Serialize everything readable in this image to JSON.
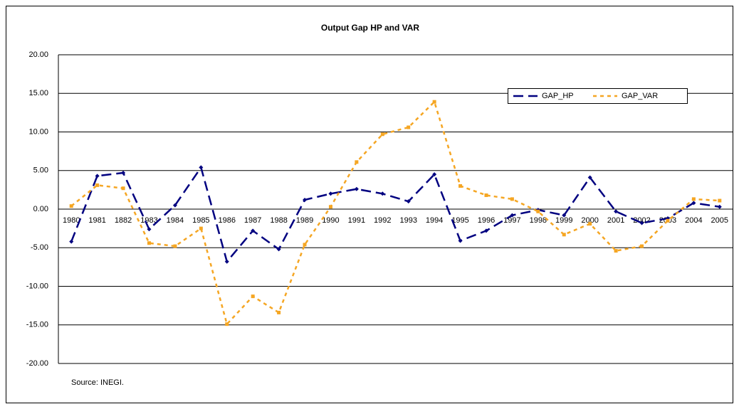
{
  "chart_data": {
    "type": "line",
    "title": "Output Gap HP and VAR",
    "categories": [
      "1980",
      "1981",
      "1882",
      "1983",
      "1984",
      "1985",
      "1986",
      "1987",
      "1988",
      "1989",
      "1990",
      "1991",
      "1992",
      "1993",
      "1994",
      "1995",
      "1996",
      "1997",
      "1998",
      "1999",
      "2000",
      "2001",
      "2002",
      "2003",
      "2004",
      "2005"
    ],
    "series": [
      {
        "name": "GAP_HP",
        "color": "#000080",
        "values": [
          -4.2,
          4.3,
          4.7,
          -2.6,
          0.5,
          5.4,
          -6.8,
          -2.8,
          -5.2,
          1.2,
          2.0,
          2.6,
          2.0,
          1.0,
          4.5,
          -4.1,
          -2.8,
          -0.8,
          -0.1,
          -0.8,
          4.1,
          -0.3,
          -1.8,
          -1.2,
          0.8,
          0.3
        ]
      },
      {
        "name": "GAP_VAR",
        "color": "#f5a623",
        "values": [
          0.4,
          3.1,
          2.7,
          -4.4,
          -4.8,
          -2.5,
          -14.9,
          -11.3,
          -13.4,
          -4.6,
          0.3,
          6.1,
          9.7,
          10.6,
          13.9,
          3.0,
          1.8,
          1.3,
          -0.3,
          -3.3,
          -1.9,
          -5.4,
          -4.8,
          -1.5,
          1.3,
          1.1
        ]
      }
    ],
    "ylim": [
      -20,
      20
    ],
    "yticks": [
      {
        "value": -20,
        "label": "-20.00"
      },
      {
        "value": -15,
        "label": "-15.00"
      },
      {
        "value": -10,
        "label": "-10.00"
      },
      {
        "value": -5,
        "label": "-5.00"
      },
      {
        "value": 0,
        "label": "0.00"
      },
      {
        "value": 5,
        "label": "5.00"
      },
      {
        "value": 10,
        "label": "10.00"
      },
      {
        "value": 15,
        "label": "15.00"
      },
      {
        "value": 20,
        "label": "20.00"
      }
    ],
    "grid": true,
    "legend": "top-right",
    "source": "Source: INEGI."
  }
}
